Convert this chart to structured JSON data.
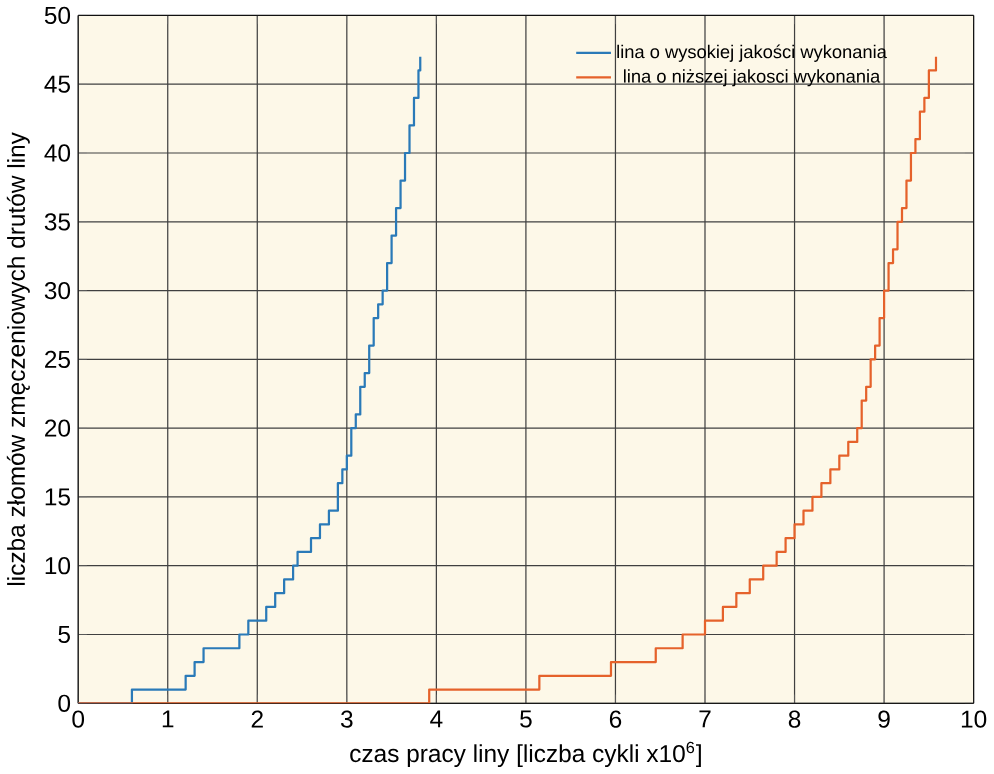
{
  "chart_data": {
    "type": "step",
    "xlabel": "czas pracy liny [liczba cykli x10$^{6}$]",
    "ylabel": "liczba złomów zmęczeniowych drutów liny",
    "xlim": [
      0,
      10
    ],
    "ylim": [
      0,
      50
    ],
    "xticks": [
      0,
      1,
      2,
      3,
      4,
      5,
      6,
      7,
      8,
      9,
      10
    ],
    "yticks": [
      0,
      5,
      10,
      15,
      20,
      25,
      30,
      35,
      40,
      45,
      50
    ],
    "grid": true,
    "legend": "top right",
    "line_style": "solid",
    "marker": "none",
    "series": [
      {
        "name": "lina o wysokiej jakości wykonania",
        "color": "#2a7ab8",
        "x": [
          0,
          0.6,
          1.2,
          1.3,
          1.4,
          1.8,
          1.9,
          2.1,
          2.2,
          2.3,
          2.4,
          2.45,
          2.6,
          2.7,
          2.8,
          2.9,
          2.95,
          3.0,
          3.05,
          3.1,
          3.15,
          3.2,
          3.25,
          3.3,
          3.35,
          3.4,
          3.45,
          3.5,
          3.55,
          3.6,
          3.65,
          3.7,
          3.75,
          3.8,
          3.82
        ],
        "values": [
          0,
          1,
          2,
          3,
          4,
          5,
          6,
          7,
          8,
          9,
          10,
          11,
          12,
          13,
          14,
          16,
          17,
          18,
          20,
          21,
          23,
          24,
          26,
          28,
          29,
          30,
          32,
          34,
          36,
          38,
          40,
          42,
          44,
          46,
          47
        ]
      },
      {
        "name": "lina o niższej jakosci wykonania",
        "color": "#e5622b",
        "x": [
          0,
          3.92,
          5.15,
          5.95,
          6.45,
          6.75,
          7.0,
          7.2,
          7.35,
          7.5,
          7.65,
          7.8,
          7.9,
          8.0,
          8.1,
          8.2,
          8.3,
          8.4,
          8.5,
          8.6,
          8.7,
          8.75,
          8.8,
          8.85,
          8.9,
          8.95,
          9.0,
          9.05,
          9.1,
          9.15,
          9.2,
          9.25,
          9.3,
          9.35,
          9.4,
          9.45,
          9.5,
          9.58
        ],
        "values": [
          0,
          1,
          2,
          3,
          4,
          5,
          6,
          7,
          8,
          9,
          10,
          11,
          12,
          13,
          14,
          15,
          16,
          17,
          18,
          19,
          20,
          22,
          23,
          25,
          26,
          28,
          30,
          32,
          33,
          35,
          36,
          38,
          40,
          41,
          43,
          44,
          46,
          47
        ]
      }
    ]
  }
}
